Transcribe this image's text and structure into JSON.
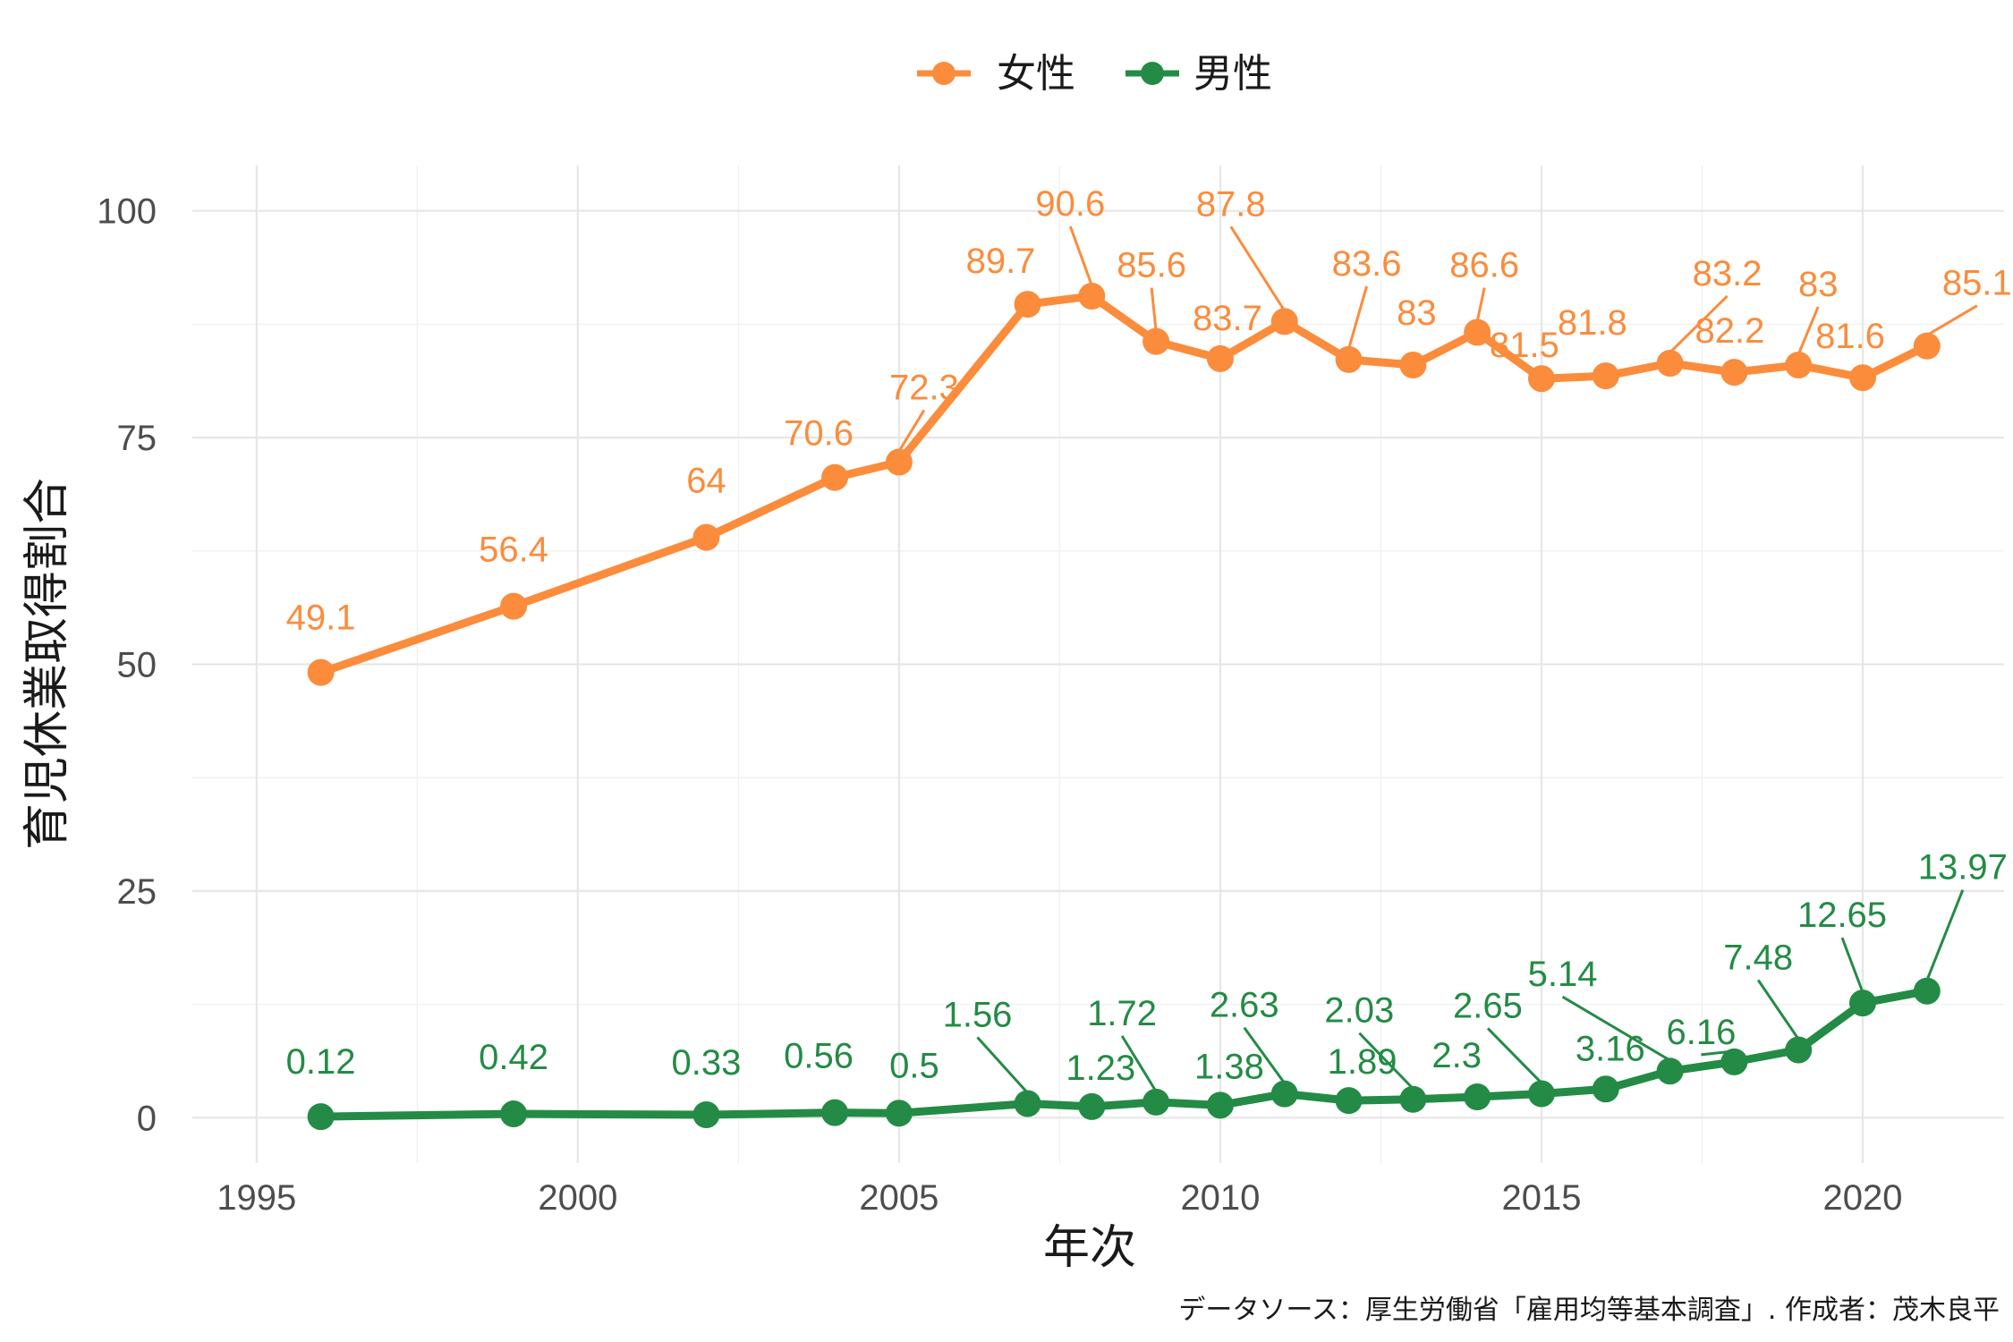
{
  "chart_data": {
    "type": "line",
    "xlabel": "年次",
    "ylabel": "育児休業取得割合",
    "caption": "データソース：厚生労働省「雇用均等基本調査」. 作成者：茂木良平",
    "xlim": [
      1994,
      2022.2
    ],
    "ylim": [
      -5,
      105
    ],
    "x_ticks": [
      1995,
      2000,
      2005,
      2010,
      2015,
      2020
    ],
    "y_ticks": [
      0,
      25,
      50,
      75,
      100
    ],
    "grid": true,
    "legend_position": "top",
    "series": [
      {
        "name": "女性",
        "color": "#FB8C3C",
        "points": [
          {
            "x": 1996,
            "y": 49.1,
            "label": "49.1"
          },
          {
            "x": 1999,
            "y": 56.4,
            "label": "56.4"
          },
          {
            "x": 2002,
            "y": 64.0,
            "label": "64"
          },
          {
            "x": 2004,
            "y": 70.6,
            "label": "70.6"
          },
          {
            "x": 2005,
            "y": 72.3,
            "label": "72.3"
          },
          {
            "x": 2007,
            "y": 89.7,
            "label": "89.7"
          },
          {
            "x": 2008,
            "y": 90.6,
            "label": "90.6"
          },
          {
            "x": 2009,
            "y": 85.6,
            "label": "85.6"
          },
          {
            "x": 2010,
            "y": 83.7,
            "label": "83.7"
          },
          {
            "x": 2011,
            "y": 87.8,
            "label": "87.8"
          },
          {
            "x": 2012,
            "y": 83.6,
            "label": "83.6"
          },
          {
            "x": 2013,
            "y": 83.0,
            "label": "83"
          },
          {
            "x": 2014,
            "y": 86.6,
            "label": "86.6"
          },
          {
            "x": 2015,
            "y": 81.5,
            "label": "81.5"
          },
          {
            "x": 2016,
            "y": 81.8,
            "label": "81.8"
          },
          {
            "x": 2017,
            "y": 83.2,
            "label": "83.2"
          },
          {
            "x": 2018,
            "y": 82.2,
            "label": "82.2"
          },
          {
            "x": 2019,
            "y": 83.0,
            "label": "83"
          },
          {
            "x": 2020,
            "y": 81.6,
            "label": "81.6"
          },
          {
            "x": 2021,
            "y": 85.1,
            "label": "85.1"
          }
        ]
      },
      {
        "name": "男性",
        "color": "#238B45",
        "points": [
          {
            "x": 1996,
            "y": 0.12,
            "label": "0.12"
          },
          {
            "x": 1999,
            "y": 0.42,
            "label": "0.42"
          },
          {
            "x": 2002,
            "y": 0.33,
            "label": "0.33"
          },
          {
            "x": 2004,
            "y": 0.56,
            "label": "0.56"
          },
          {
            "x": 2005,
            "y": 0.5,
            "label": "0.5"
          },
          {
            "x": 2007,
            "y": 1.56,
            "label": "1.56"
          },
          {
            "x": 2008,
            "y": 1.23,
            "label": "1.23"
          },
          {
            "x": 2009,
            "y": 1.72,
            "label": "1.72"
          },
          {
            "x": 2010,
            "y": 1.38,
            "label": "1.38"
          },
          {
            "x": 2011,
            "y": 2.63,
            "label": "2.63"
          },
          {
            "x": 2012,
            "y": 1.89,
            "label": "1.89"
          },
          {
            "x": 2013,
            "y": 2.03,
            "label": "2.03"
          },
          {
            "x": 2014,
            "y": 2.3,
            "label": "2.3"
          },
          {
            "x": 2015,
            "y": 2.65,
            "label": "2.65"
          },
          {
            "x": 2016,
            "y": 3.16,
            "label": "3.16"
          },
          {
            "x": 2017,
            "y": 5.14,
            "label": "5.14"
          },
          {
            "x": 2018,
            "y": 6.16,
            "label": "6.16"
          },
          {
            "x": 2019,
            "y": 7.48,
            "label": "7.48"
          },
          {
            "x": 2020,
            "y": 12.65,
            "label": "12.65"
          },
          {
            "x": 2021,
            "y": 13.97,
            "label": "13.97"
          }
        ]
      }
    ]
  }
}
